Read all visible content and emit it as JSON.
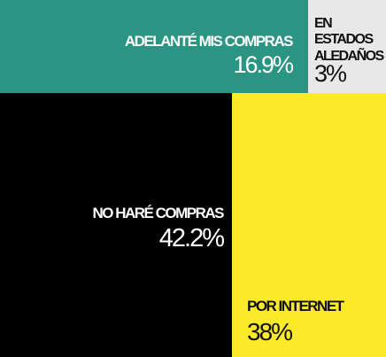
{
  "chart_data": {
    "type": "treemap",
    "title": "",
    "values_unit": "%",
    "items": [
      {
        "label": "ADELANTÉ MIS COMPRAS",
        "value": 16.9,
        "value_text": "16.9%",
        "color": "#2b9482",
        "text_color": "#ffffff"
      },
      {
        "label": "EN ESTADOS ALEDAÑOS",
        "value": 3,
        "value_text": "3%",
        "color": "#e8e8e8",
        "text_color": "#111111"
      },
      {
        "label": "NO HARÉ COMPRAS",
        "value": 42.2,
        "value_text": "42.2%",
        "color": "#000000",
        "text_color": "#ffffff"
      },
      {
        "label": "POR INTERNET",
        "value": 38,
        "value_text": "38%",
        "color": "#fbe92a",
        "text_color": "#111111"
      }
    ]
  }
}
